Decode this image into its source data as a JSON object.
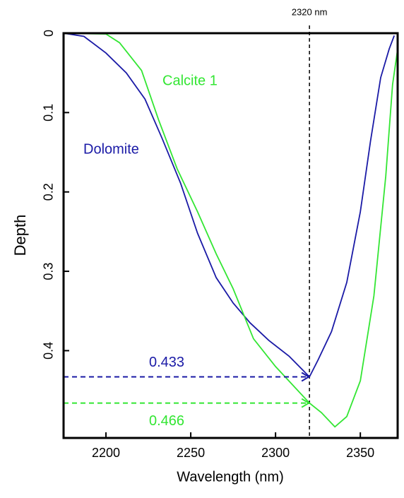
{
  "chart_data": {
    "type": "line",
    "x_label": "Wavelength (nm)",
    "y_label": "Depth",
    "xlim": [
      2175,
      2372
    ],
    "xticks": [
      2200,
      2250,
      2300,
      2350
    ],
    "ylim": [
      0,
      0.51
    ],
    "yticks": [
      0,
      0.1,
      0.2,
      0.3,
      0.4
    ],
    "y_inverted": true,
    "series": [
      {
        "name": "Dolomite",
        "color": "#1a1aa6",
        "x": [
          2175,
          2187,
          2200,
          2212,
          2223,
          2233,
          2244,
          2254,
          2265,
          2275,
          2285,
          2296,
          2308,
          2320,
          2325,
          2333,
          2342,
          2350,
          2356,
          2362,
          2367,
          2370
        ],
        "values": [
          0,
          0.004,
          0.025,
          0.05,
          0.083,
          0.132,
          0.189,
          0.252,
          0.308,
          0.34,
          0.365,
          0.387,
          0.407,
          0.433,
          0.412,
          0.376,
          0.314,
          0.225,
          0.136,
          0.056,
          0.02,
          0.003
        ]
      },
      {
        "name": "Calcite 1",
        "color": "#33e633",
        "x": [
          2175,
          2200,
          2208,
          2221,
          2231,
          2242,
          2254,
          2265,
          2275,
          2287,
          2300,
          2320,
          2327,
          2335,
          2342,
          2350,
          2358,
          2365,
          2369,
          2372
        ],
        "values": [
          0,
          0.001,
          0.012,
          0.047,
          0.109,
          0.171,
          0.225,
          0.278,
          0.322,
          0.385,
          0.42,
          0.466,
          0.478,
          0.496,
          0.483,
          0.438,
          0.331,
          0.18,
          0.065,
          0.02
        ]
      }
    ],
    "vline": {
      "x": 2320,
      "label": "2320 nm"
    },
    "markers": [
      {
        "label": "0.433",
        "value": 0.433,
        "color": "#1a1aa6"
      },
      {
        "label": "0.466",
        "value": 0.466,
        "color": "#33e633"
      }
    ]
  }
}
